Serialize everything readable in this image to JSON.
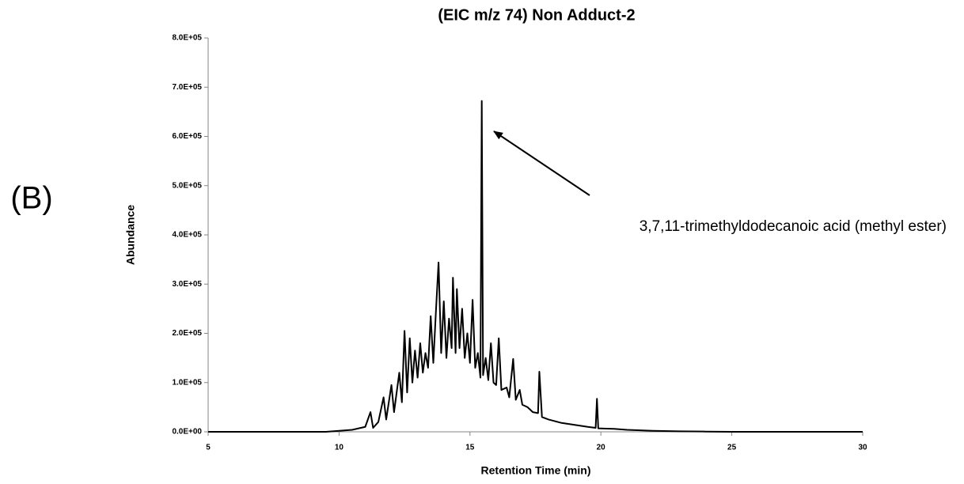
{
  "chart_data": {
    "type": "line",
    "title": "(EIC m/z 74)    Non Adduct-2",
    "panel_label": "(B)",
    "x_label": "Retention Time (min)",
    "y_label": "Abundance",
    "annotation": "3,7,11-trimethyldodecanoic acid (methyl ester)",
    "color": "#000000",
    "x": [
      5,
      9.5,
      10,
      10.5,
      11,
      11.2,
      11.3,
      11.5,
      11.7,
      11.8,
      12,
      12.1,
      12.3,
      12.4,
      12.5,
      12.6,
      12.7,
      12.8,
      12.9,
      13,
      13.1,
      13.2,
      13.3,
      13.4,
      13.5,
      13.6,
      13.7,
      13.8,
      13.9,
      14,
      14.1,
      14.2,
      14.3,
      14.35,
      14.45,
      14.5,
      14.6,
      14.7,
      14.8,
      14.9,
      15,
      15.1,
      15.2,
      15.3,
      15.4,
      15.45,
      15.5,
      15.6,
      15.7,
      15.8,
      15.9,
      16,
      16.1,
      16.2,
      16.4,
      16.5,
      16.65,
      16.75,
      16.9,
      17,
      17.2,
      17.4,
      17.6,
      17.65,
      17.75,
      18,
      18.5,
      19,
      19.5,
      19.8,
      19.85,
      19.9,
      20.5,
      21,
      22,
      23,
      24,
      25,
      30
    ],
    "values": [
      0,
      0,
      2000,
      4000,
      10000,
      40000,
      8000,
      20000,
      70000,
      25000,
      95000,
      40000,
      120000,
      60000,
      205000,
      80000,
      190000,
      100000,
      165000,
      110000,
      180000,
      120000,
      160000,
      130000,
      235000,
      140000,
      245000,
      344000,
      160000,
      265000,
      150000,
      230000,
      170000,
      313000,
      160000,
      290000,
      170000,
      250000,
      150000,
      200000,
      140000,
      268000,
      130000,
      160000,
      110000,
      672000,
      115000,
      150000,
      105000,
      180000,
      100000,
      95000,
      190000,
      85000,
      90000,
      70000,
      148000,
      65000,
      85000,
      55000,
      50000,
      40000,
      38000,
      122000,
      30000,
      25000,
      18000,
      14000,
      10000,
      8000,
      67000,
      7000,
      6000,
      4000,
      2000,
      1000,
      500,
      0,
      0
    ],
    "xlim": [
      5,
      30
    ],
    "xticks": [
      5,
      10,
      15,
      20,
      25,
      30
    ],
    "ylim": [
      0,
      800000
    ],
    "yticks": [
      {
        "value": 0,
        "label": "0.0E+00"
      },
      {
        "value": 100000,
        "label": "1.0E+05"
      },
      {
        "value": 200000,
        "label": "2.0E+05"
      },
      {
        "value": 300000,
        "label": "3.0E+05"
      },
      {
        "value": 400000,
        "label": "4.0E+05"
      },
      {
        "value": 500000,
        "label": "5.0E+05"
      },
      {
        "value": 600000,
        "label": "6.0E+05"
      },
      {
        "value": 700000,
        "label": "7.0E+05"
      },
      {
        "value": 800000,
        "label": "8.0E+05"
      }
    ],
    "grid": false
  }
}
